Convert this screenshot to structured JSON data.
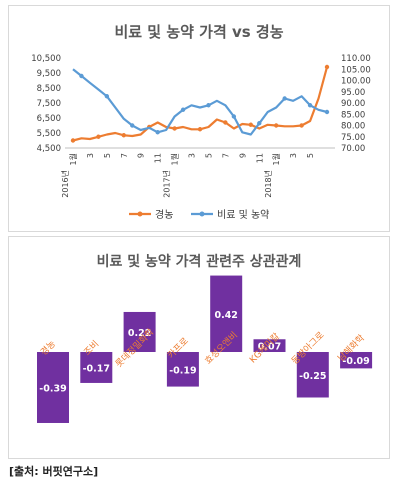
{
  "chart_data": [
    {
      "type": "line",
      "title": "비료 및 농약 가격 vs 경농",
      "x_tick_labels": [
        "1월",
        "3",
        "5",
        "7",
        "9",
        "11",
        "1월",
        "3",
        "5",
        "7",
        "9",
        "11",
        "1월",
        "3",
        "5"
      ],
      "year_labels": [
        "2016년",
        "2017년",
        "2018년"
      ],
      "y_left": {
        "min": 4500,
        "max": 10500,
        "ticks": [
          "4,500",
          "5,500",
          "6,500",
          "7,500",
          "8,500",
          "9,500",
          "10,500"
        ]
      },
      "y_right": {
        "min": 70,
        "max": 110,
        "ticks": [
          "70.00",
          "75.00",
          "80.00",
          "85.00",
          "90.00",
          "95.00",
          "100.00",
          "105.00",
          "110.00"
        ]
      },
      "series": [
        {
          "name": "경농",
          "axis": "left",
          "color": "#ED7D31",
          "values": [
            5000,
            5150,
            5100,
            5250,
            5400,
            5500,
            5350,
            5300,
            5400,
            5900,
            6200,
            5900,
            5800,
            5900,
            5750,
            5750,
            5900,
            6400,
            6200,
            5800,
            6100,
            6050,
            5800,
            6050,
            6000,
            5950,
            5950,
            6000,
            6300,
            7800,
            9900
          ]
        },
        {
          "name": "비료 및 농약",
          "axis": "right",
          "color": "#5B9BD5",
          "values": [
            105,
            102,
            99,
            96,
            93,
            88,
            83,
            80,
            78,
            79,
            77,
            78,
            84,
            87,
            89,
            88,
            89,
            91,
            89,
            84,
            77,
            76,
            81,
            86,
            88,
            92,
            91,
            93,
            89,
            87,
            86
          ]
        }
      ]
    },
    {
      "type": "bar",
      "title": "비료 및 농약 가격 관련주 상관관계",
      "categories": [
        "경농",
        "조비",
        "롯데정밀화학",
        "카프로",
        "효성오앤비",
        "KG케미칼",
        "동방아그로",
        "남해화학"
      ],
      "values": [
        -0.39,
        -0.17,
        0.22,
        -0.19,
        0.42,
        0.07,
        -0.25,
        -0.09
      ],
      "value_labels": [
        "-0.39",
        "-0.17",
        "0.22",
        "-0.19",
        "0.42",
        "0.07",
        "-0.25",
        "-0.09"
      ],
      "bar_color": "#7030A0",
      "category_label_color": "#ED7D31"
    }
  ],
  "source": "[출처: 버핏연구소]"
}
